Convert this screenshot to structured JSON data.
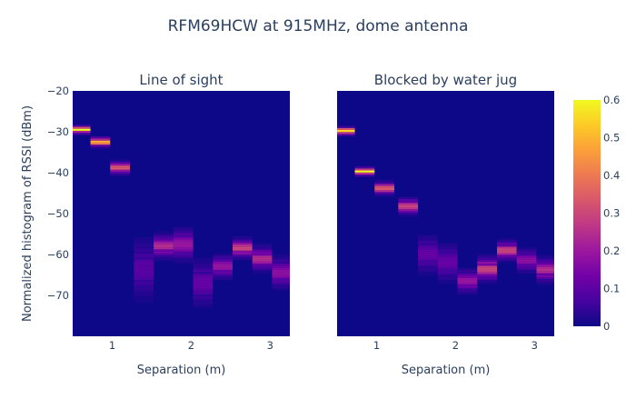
{
  "chart_data": {
    "type": "heatmap",
    "title": "RFM69HCW at 915MHz, dome antenna",
    "ylabel": "Normalized histogram of RSSI (dBm)",
    "ylim": [
      -80,
      -20
    ],
    "y_ticks": [
      -20,
      -30,
      -40,
      -50,
      -60,
      -70
    ],
    "y_tick_labels": [
      "−20",
      "−30",
      "−40",
      "−50",
      "−60",
      "−70"
    ],
    "colorscale": "plasma",
    "colorbar": {
      "range": [
        0,
        0.6
      ],
      "ticks": [
        0,
        0.1,
        0.2,
        0.3,
        0.4,
        0.5,
        0.6
      ],
      "tick_labels": [
        "0",
        "0.1",
        "0.2",
        "0.3",
        "0.4",
        "0.5",
        "0.6"
      ]
    },
    "panels": [
      {
        "subtitle": "Line of sight",
        "xlabel": "Separation (m)",
        "xlim": [
          0.5,
          3.25
        ],
        "x_ticks": [
          1,
          2,
          3
        ],
        "x_tick_labels": [
          "1",
          "2",
          "3"
        ],
        "columns": [
          {
            "x": 0.6,
            "peak": -29.5,
            "spread": 0.5,
            "max": 0.6
          },
          {
            "x": 0.85,
            "peak": -32.5,
            "spread": 0.6,
            "max": 0.5
          },
          {
            "x": 1.1,
            "peak": -38.8,
            "spread": 0.8,
            "max": 0.35
          },
          {
            "x": 1.4,
            "peak": -63.5,
            "spread": 4.0,
            "max": 0.1
          },
          {
            "x": 1.65,
            "peak": -58.0,
            "spread": 1.5,
            "max": 0.25
          },
          {
            "x": 1.9,
            "peak": -57.5,
            "spread": 2.0,
            "max": 0.2
          },
          {
            "x": 2.15,
            "peak": -67.0,
            "spread": 3.0,
            "max": 0.12
          },
          {
            "x": 2.4,
            "peak": -63.0,
            "spread": 1.5,
            "max": 0.2
          },
          {
            "x": 2.65,
            "peak": -58.5,
            "spread": 1.2,
            "max": 0.3
          },
          {
            "x": 2.9,
            "peak": -61.0,
            "spread": 1.5,
            "max": 0.25
          },
          {
            "x": 3.15,
            "peak": -64.5,
            "spread": 2.0,
            "max": 0.18
          }
        ]
      },
      {
        "subtitle": "Blocked by water jug",
        "xlabel": "Separation (m)",
        "xlim": [
          0.5,
          3.25
        ],
        "x_ticks": [
          1,
          2,
          3
        ],
        "x_tick_labels": [
          "1",
          "2",
          "3"
        ],
        "columns": [
          {
            "x": 0.6,
            "peak": -29.8,
            "spread": 0.5,
            "max": 0.55
          },
          {
            "x": 0.85,
            "peak": -39.7,
            "spread": 0.5,
            "max": 0.6
          },
          {
            "x": 1.1,
            "peak": -43.8,
            "spread": 0.8,
            "max": 0.35
          },
          {
            "x": 1.4,
            "peak": -48.2,
            "spread": 1.0,
            "max": 0.3
          },
          {
            "x": 1.65,
            "peak": -60.0,
            "spread": 2.5,
            "max": 0.12
          },
          {
            "x": 1.9,
            "peak": -62.0,
            "spread": 2.5,
            "max": 0.12
          },
          {
            "x": 2.15,
            "peak": -66.5,
            "spread": 1.5,
            "max": 0.2
          },
          {
            "x": 2.4,
            "peak": -63.5,
            "spread": 1.5,
            "max": 0.3
          },
          {
            "x": 2.65,
            "peak": -59.0,
            "spread": 1.2,
            "max": 0.3
          },
          {
            "x": 2.9,
            "peak": -61.5,
            "spread": 1.5,
            "max": 0.18
          },
          {
            "x": 3.15,
            "peak": -63.8,
            "spread": 1.5,
            "max": 0.25
          }
        ]
      }
    ]
  }
}
